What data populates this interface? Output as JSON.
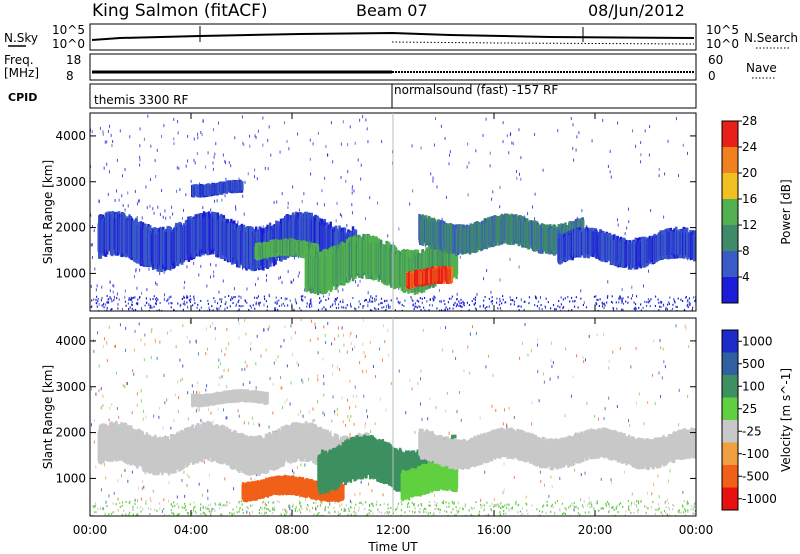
{
  "header": {
    "title": "King Salmon (fitACF)",
    "beam": "Beam 07",
    "date": "08/Jun/2012"
  },
  "noise_panel": {
    "left_label": "N.Sky",
    "right_label": "N.Search",
    "left_ticks": [
      "10^5",
      "10^0"
    ],
    "right_ticks": [
      "10^5",
      "10^0"
    ]
  },
  "freq_panel": {
    "left_label_1": "Freq.",
    "left_label_2": "[MHz]",
    "right_label": "Nave",
    "left_ticks": [
      "18",
      "8"
    ],
    "right_ticks": [
      "60",
      "0"
    ]
  },
  "cpid_panel": {
    "label": "CPID",
    "mode_1": "themis 3300 RF",
    "mode_2": "normalsound (fast) -157 RF"
  },
  "chart_data": [
    {
      "type": "heatmap",
      "panel": "power",
      "ylabel": "Slant Range [km]",
      "yticks": [
        "1000",
        "2000",
        "3000",
        "4000"
      ],
      "ylim": [
        180,
        4500
      ],
      "colorbar_label": "Power [dB]",
      "colorbar_ticks": [
        "4",
        "8",
        "12",
        "16",
        "20",
        "24",
        "28"
      ],
      "colorbar_range": [
        0,
        30
      ],
      "colors": [
        "#1c1cd8",
        "#3a5ac8",
        "#3f8a6a",
        "#52b050",
        "#f0c020",
        "#f08020",
        "#e82018"
      ],
      "regions": [
        {
          "t": [
            0.3,
            10.5
          ],
          "r": [
            1200,
            2200
          ],
          "level": 8
        },
        {
          "t": [
            6.5,
            9.0
          ],
          "r": [
            1300,
            1700
          ],
          "level": 16
        },
        {
          "t": [
            8.5,
            14.5
          ],
          "r": [
            700,
            1700
          ],
          "level": 16
        },
        {
          "t": [
            12.5,
            14.3
          ],
          "r": [
            700,
            1100
          ],
          "level": 28
        },
        {
          "t": [
            4.0,
            6.0
          ],
          "r": [
            2700,
            3000
          ],
          "level": 6
        },
        {
          "t": [
            13.0,
            19.5
          ],
          "r": [
            1500,
            2200
          ],
          "level": 10
        },
        {
          "t": [
            18.5,
            24.0
          ],
          "r": [
            1200,
            1900
          ],
          "level": 8
        }
      ]
    },
    {
      "type": "heatmap",
      "panel": "velocity",
      "ylabel": "Slant Range [km]",
      "yticks": [
        "1000",
        "2000",
        "3000",
        "4000"
      ],
      "ylim": [
        180,
        4500
      ],
      "xticks": [
        "00:00",
        "04:00",
        "08:00",
        "12:00",
        "16:00",
        "20:00",
        "00:00"
      ],
      "xlabel": "Time UT",
      "colorbar_label": "Velocity [m s^-1]",
      "colorbar_ticks": [
        "1000",
        "500",
        "100",
        "25",
        "-25",
        "-100",
        "-500",
        "-1000"
      ],
      "colors": [
        "#1e2ac8",
        "#3060a0",
        "#3d9060",
        "#60d040",
        "#c8c8c8",
        "#f0a040",
        "#f06018",
        "#e81010"
      ],
      "regions": [
        {
          "t": [
            0.3,
            11.0
          ],
          "r": [
            1200,
            2100
          ],
          "velocity": 0
        },
        {
          "t": [
            6.0,
            10.0
          ],
          "r": [
            550,
            1000
          ],
          "velocity": -300
        },
        {
          "t": [
            9.0,
            14.5
          ],
          "r": [
            800,
            1800
          ],
          "velocity": 300
        },
        {
          "t": [
            12.3,
            14.5
          ],
          "r": [
            600,
            1300
          ],
          "velocity": 100
        },
        {
          "t": [
            4.0,
            7.0
          ],
          "r": [
            2600,
            2900
          ],
          "velocity": 0
        },
        {
          "t": [
            13.0,
            24.0
          ],
          "r": [
            1300,
            2000
          ],
          "velocity": 0
        }
      ]
    }
  ]
}
